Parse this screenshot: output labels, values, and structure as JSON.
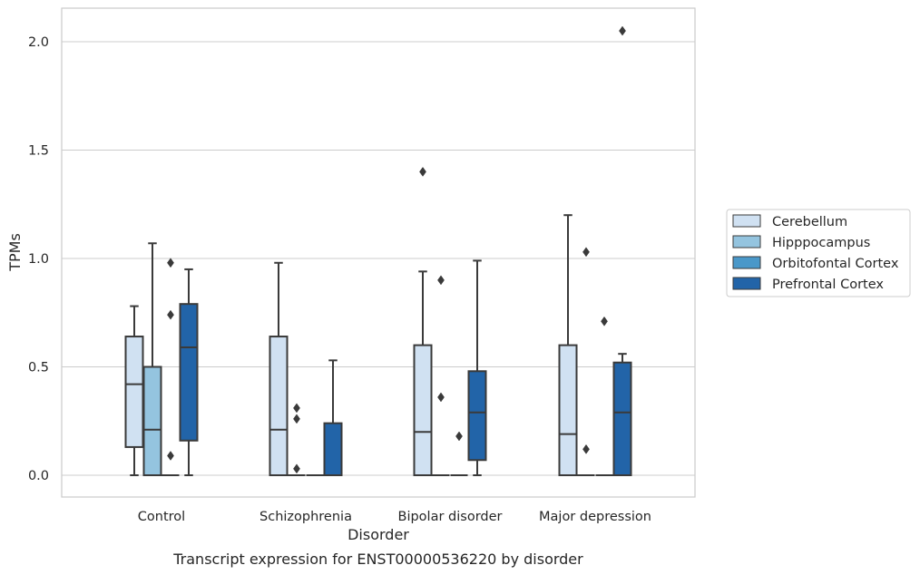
{
  "chart_data": {
    "type": "box",
    "title": "",
    "caption": "Transcript expression for ENST00000536220 by disorder",
    "xlabel": "Disorder",
    "ylabel": "TPMs",
    "categories": [
      "Control",
      "Schizophrenia",
      "Bipolar disorder",
      "Major depression"
    ],
    "ylim": [
      -0.1,
      2.16
    ],
    "yticks": [
      0.0,
      0.5,
      1.0,
      1.5,
      2.0
    ],
    "ytick_labels": [
      "0.0",
      "0.5",
      "1.0",
      "1.5",
      "2.0"
    ],
    "grid": "horizontal",
    "legend_position": "right",
    "series": [
      {
        "name": "Cerebellum",
        "color": "#d0e1f2",
        "boxes": [
          {
            "min": 0.0,
            "q1": 0.13,
            "median": 0.42,
            "q3": 0.64,
            "max": 0.78,
            "outliers": []
          },
          {
            "min": 0.0,
            "q1": 0.0,
            "median": 0.21,
            "q3": 0.64,
            "max": 0.98,
            "outliers": []
          },
          {
            "min": 0.0,
            "q1": 0.0,
            "median": 0.2,
            "q3": 0.6,
            "max": 0.94,
            "outliers": [
              1.4
            ]
          },
          {
            "min": 0.0,
            "q1": 0.0,
            "median": 0.19,
            "q3": 0.6,
            "max": 1.2,
            "outliers": []
          }
        ]
      },
      {
        "name": "Hipppocampus",
        "color": "#94c4df",
        "boxes": [
          {
            "min": 0.0,
            "q1": 0.0,
            "median": 0.21,
            "q3": 0.5,
            "max": 1.07,
            "outliers": []
          },
          {
            "min": 0.0,
            "q1": 0.0,
            "median": 0.0,
            "q3": 0.0,
            "max": 0.0,
            "outliers": [
              0.31,
              0.26,
              0.03
            ]
          },
          {
            "min": 0.0,
            "q1": 0.0,
            "median": 0.0,
            "q3": 0.0,
            "max": 0.0,
            "outliers": [
              0.9,
              0.36
            ]
          },
          {
            "min": 0.0,
            "q1": 0.0,
            "median": 0.0,
            "q3": 0.0,
            "max": 0.0,
            "outliers": [
              1.03,
              0.12
            ]
          }
        ]
      },
      {
        "name": "Orbitofontal Cortex",
        "color": "#4a98c9",
        "boxes": [
          {
            "min": 0.0,
            "q1": 0.0,
            "median": 0.0,
            "q3": 0.0,
            "max": 0.0,
            "outliers": [
              0.98,
              0.74,
              0.09
            ]
          },
          {
            "min": 0.0,
            "q1": 0.0,
            "median": 0.0,
            "q3": 0.0,
            "max": 0.0,
            "outliers": []
          },
          {
            "min": 0.0,
            "q1": 0.0,
            "median": 0.0,
            "q3": 0.0,
            "max": 0.0,
            "outliers": [
              0.18
            ]
          },
          {
            "min": 0.0,
            "q1": 0.0,
            "median": 0.0,
            "q3": 0.0,
            "max": 0.0,
            "outliers": [
              0.71
            ]
          }
        ]
      },
      {
        "name": "Prefrontal Cortex",
        "color": "#2264a8",
        "boxes": [
          {
            "min": 0.0,
            "q1": 0.16,
            "median": 0.59,
            "q3": 0.79,
            "max": 0.95,
            "outliers": []
          },
          {
            "min": 0.0,
            "q1": 0.0,
            "median": 0.0,
            "q3": 0.24,
            "max": 0.53,
            "outliers": []
          },
          {
            "min": 0.0,
            "q1": 0.07,
            "median": 0.29,
            "q3": 0.48,
            "max": 0.99,
            "outliers": []
          },
          {
            "min": 0.0,
            "q1": 0.0,
            "median": 0.29,
            "q3": 0.52,
            "max": 0.56,
            "outliers": [
              2.05
            ]
          }
        ]
      }
    ],
    "colors": {
      "line": "#3a3a3a",
      "grid": "#cccccc",
      "frame": "#cccccc",
      "text": "#262626",
      "legend_border": "#cccccc"
    }
  }
}
